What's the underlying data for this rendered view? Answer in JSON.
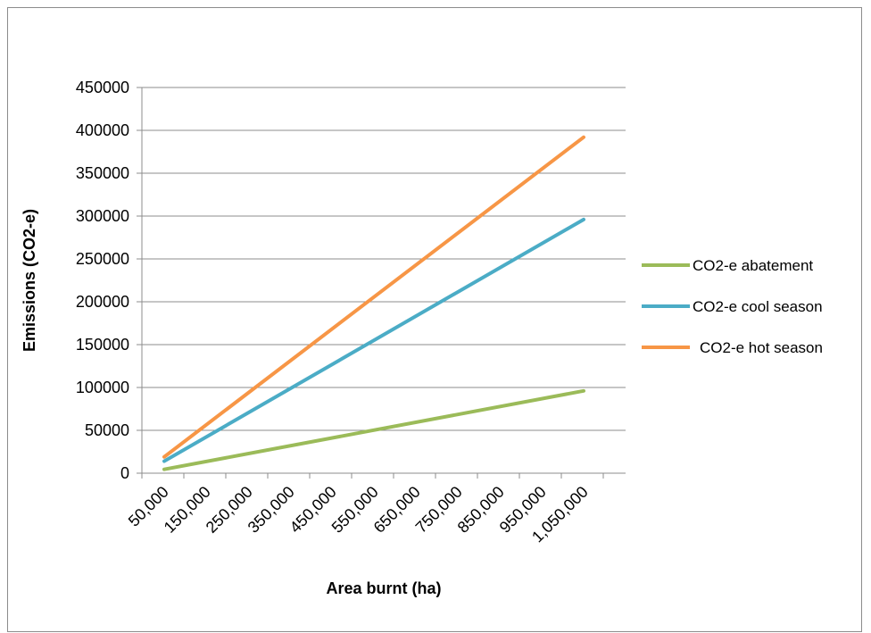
{
  "chart_data": {
    "type": "line",
    "xlabel": "Area burnt (ha)",
    "ylabel": "Emissions (CO2-e)",
    "categories": [
      "50,000",
      "150,000",
      "250,000",
      "350,000",
      "450,000",
      "550,000",
      "650,000",
      "750,000",
      "850,000",
      "950,000",
      "1,050,000"
    ],
    "x": [
      50000,
      1050000
    ],
    "ylim": [
      0,
      450000
    ],
    "yticks": [
      "0",
      "50000",
      "100000",
      "150000",
      "200000",
      "250000",
      "300000",
      "350000",
      "400000",
      "450000"
    ],
    "grid": true,
    "legend": "right",
    "series": [
      {
        "name": "CO2-e abatement",
        "color": "#9bbb59",
        "values": [
          4500,
          96000
        ]
      },
      {
        "name": "CO2-e cool season",
        "color": "#4bacc6",
        "values": [
          14000,
          296000
        ]
      },
      {
        "name": "CO2-e hot season",
        "color": "#f79646",
        "values": [
          19000,
          392000
        ]
      }
    ]
  }
}
